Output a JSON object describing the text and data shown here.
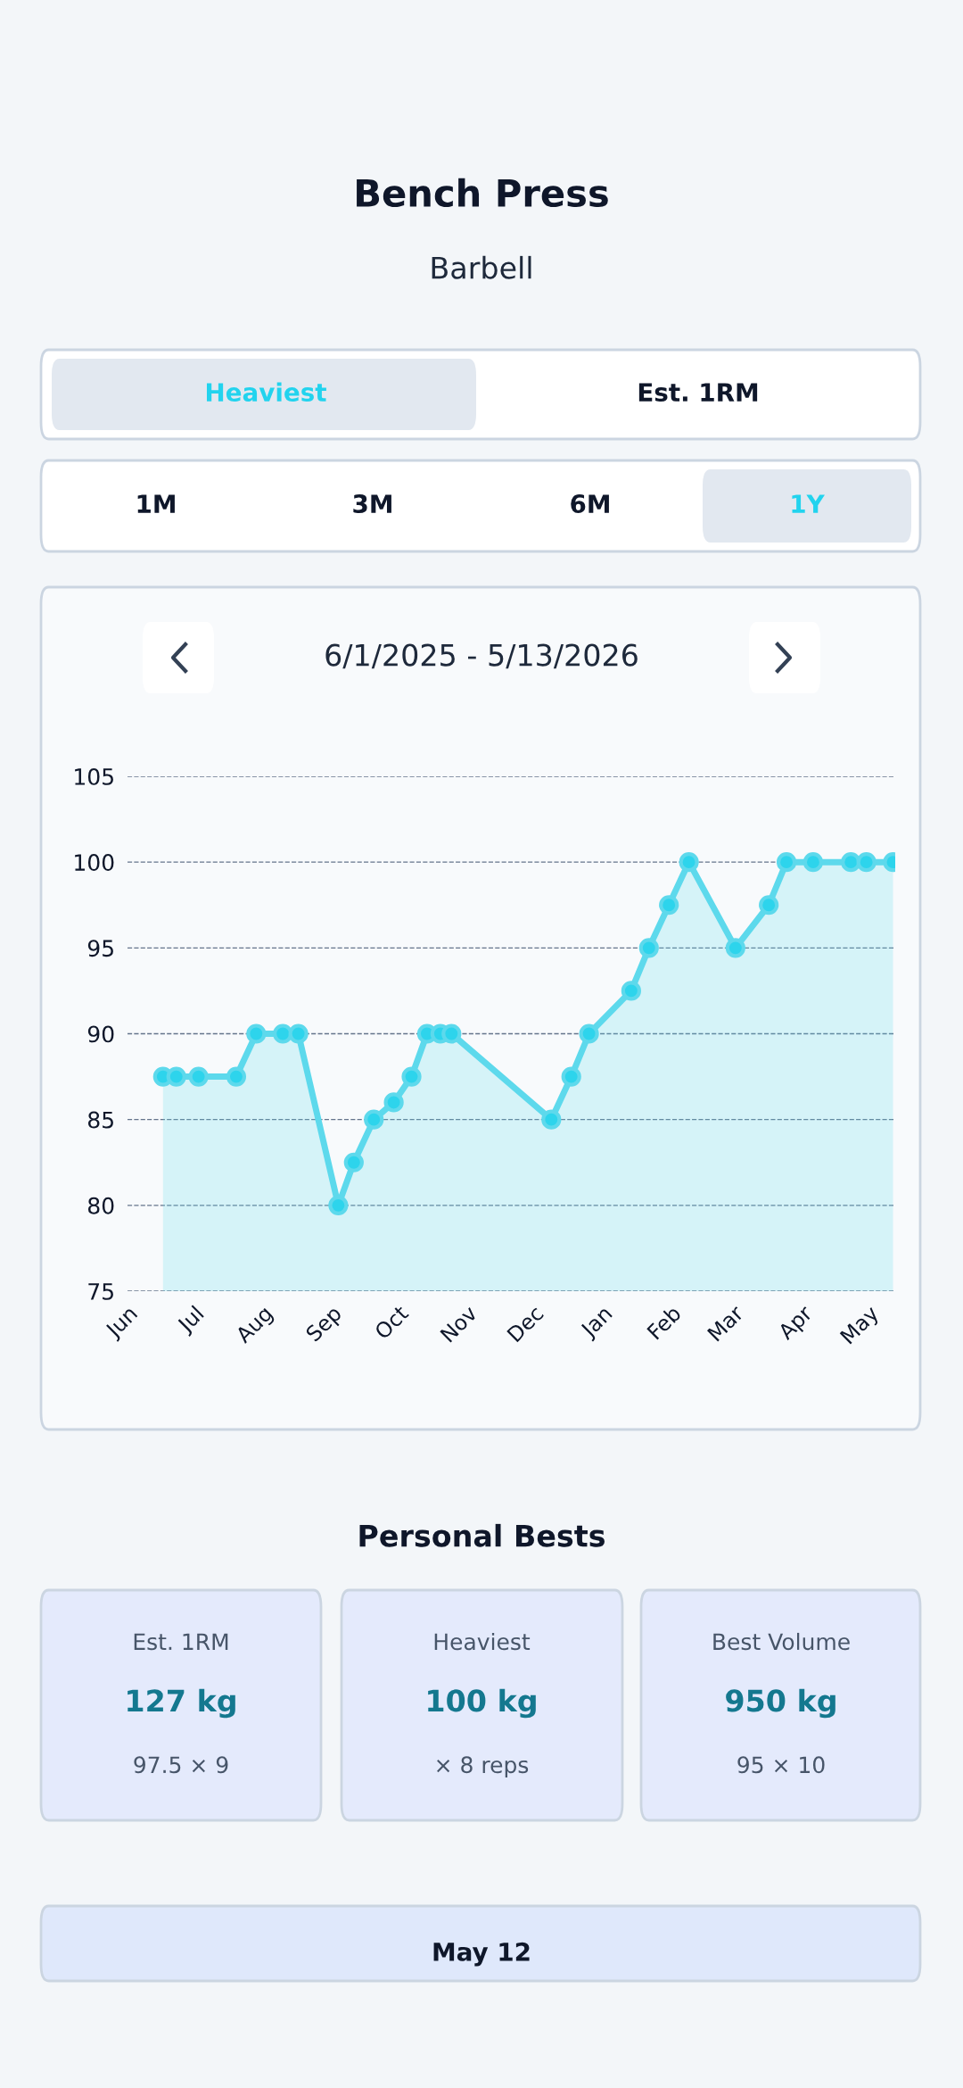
{
  "chart_data": {
    "type": "area",
    "title": "Bench Press",
    "subtitle": "Barbell",
    "annotations": [
      "Heaviest",
      "Est. 1RM",
      "1M",
      "3M",
      "6M",
      "1Y",
      "6/1/2025 - 5/13/2026",
      "Personal Bests",
      "Est. 1RM",
      "127 kg",
      "97.5 × 9",
      "Heaviest",
      "100 kg",
      "× 8 reps",
      "Best Volume",
      "950 kg",
      "95 × 10",
      "May 12"
    ],
    "x": [
      "2025-06-17",
      "2025-06-23",
      "2025-07-03",
      "2025-07-20",
      "2025-07-29",
      "2025-08-10",
      "2025-08-17",
      "2025-09-04",
      "2025-09-11",
      "2025-09-20",
      "2025-09-29",
      "2025-10-07",
      "2025-10-14",
      "2025-10-20",
      "2025-10-25",
      "2025-12-09",
      "2025-12-18",
      "2025-12-26",
      "2026-01-14",
      "2026-01-22",
      "2026-01-31",
      "2026-02-09",
      "2026-03-02",
      "2026-03-17",
      "2026-03-25",
      "2026-04-06",
      "2026-04-23",
      "2026-04-30",
      "2026-05-12"
    ],
    "series": [
      {
        "color": "#5dd9ec",
        "values": [
          87.5,
          87.5,
          87.5,
          87.5,
          90,
          90,
          90,
          80,
          82.5,
          85,
          86,
          87.5,
          90,
          90,
          90,
          85,
          87.5,
          90,
          92.5,
          95,
          97.5,
          100,
          95,
          97.5,
          100,
          100,
          100,
          100,
          100
        ]
      }
    ],
    "xlim": [
      "2025-06-01",
      "2026-05-13"
    ],
    "xticks": [
      {
        "value": "2025-06-01",
        "label": "Jun"
      },
      {
        "value": "2025-07-01",
        "label": "Jul"
      },
      {
        "value": "2025-08-01",
        "label": "Aug"
      },
      {
        "value": "2025-09-01",
        "label": "Sep"
      },
      {
        "value": "2025-10-01",
        "label": "Oct"
      },
      {
        "value": "2025-11-01",
        "label": "Nov"
      },
      {
        "value": "2025-12-01",
        "label": "Dec"
      },
      {
        "value": "2026-01-01",
        "label": "Jan"
      },
      {
        "value": "2026-02-01",
        "label": "Feb"
      },
      {
        "value": "2026-03-01",
        "label": "Mar"
      },
      {
        "value": "2026-04-01",
        "label": "Apr"
      },
      {
        "value": "2026-05-01",
        "label": "May"
      }
    ],
    "ylim": [
      75,
      105
    ],
    "yticks": [
      75,
      80,
      85,
      90,
      95,
      100,
      105
    ],
    "grid": "y",
    "marker": "circle",
    "line_style": "solid",
    "legend": false
  }
}
